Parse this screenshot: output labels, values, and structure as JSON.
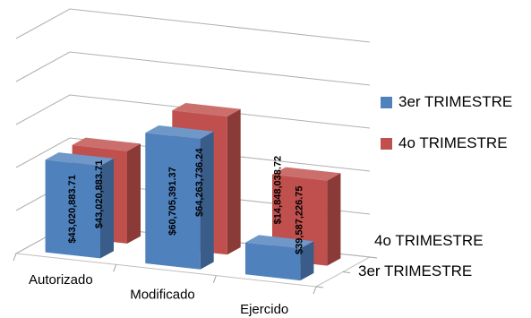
{
  "chart_data": {
    "type": "bar",
    "categories": [
      "Autorizado",
      "Modificado",
      "Ejercido"
    ],
    "series": [
      {
        "name": "3er TRIMESTRE",
        "color": "#4f81bd",
        "values": [
          43020883.71,
          60705391.37,
          14848038.72
        ],
        "labels": [
          "$43,020,883.71",
          "$60,705,391.37",
          "$14,848,038.72"
        ]
      },
      {
        "name": "4o TRIMESTRE",
        "color": "#c0504d",
        "values": [
          43020883.71,
          64263736.24,
          39587226.75
        ],
        "labels": [
          "$43,020,883.71",
          "$64,263,736.24",
          "$39,587,226.75"
        ]
      }
    ],
    "depth_axis_labels": [
      "4o TRIMESTRE",
      "3er TRIMESTRE"
    ],
    "ylim": [
      0,
      100000000
    ],
    "grid": true,
    "legend_position": "right"
  }
}
